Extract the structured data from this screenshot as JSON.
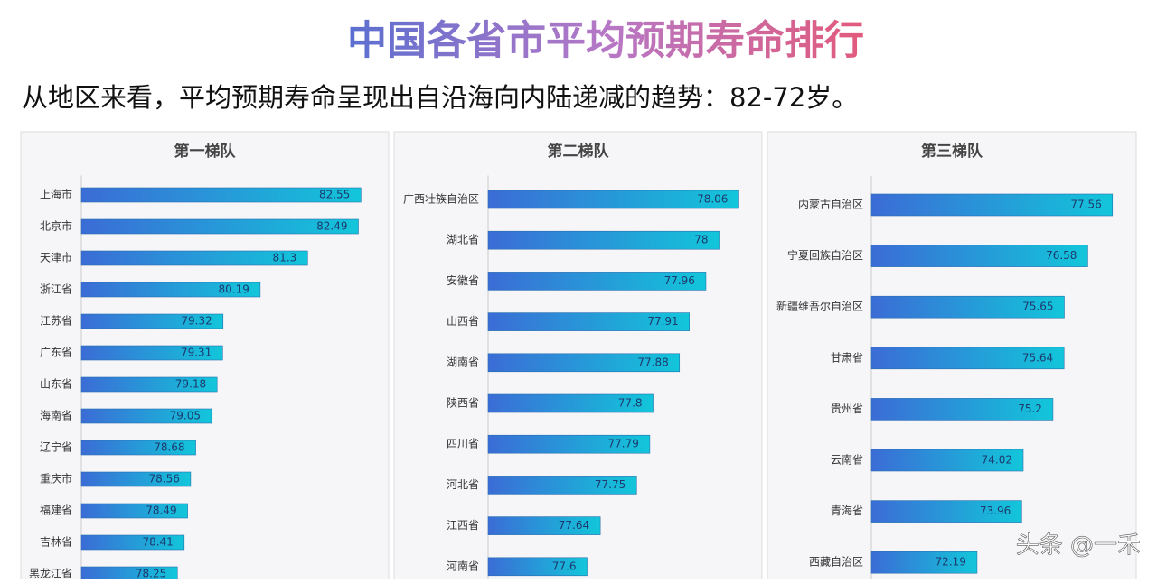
{
  "title": "中国各省市平均预期寿命排行",
  "subtitle": "从地区来看，平均预期寿命呈现出自沿海向内陆递减的趋势：82-72岁。",
  "watermark": "头条 @一禾",
  "chart_data": [
    {
      "type": "bar",
      "orientation": "horizontal",
      "title": "第一梯队",
      "categories": [
        "上海市",
        "北京市",
        "天津市",
        "浙江省",
        "江苏省",
        "广东省",
        "山东省",
        "海南省",
        "辽宁省",
        "重庆市",
        "福建省",
        "吉林省",
        "黑龙江省"
      ],
      "values": [
        82.55,
        82.49,
        81.3,
        80.19,
        79.32,
        79.31,
        79.18,
        79.05,
        78.68,
        78.56,
        78.49,
        78.41,
        78.25
      ],
      "xlim": [
        76,
        83.2
      ],
      "color": [
        "#3b6cd6",
        "#12c6da"
      ]
    },
    {
      "type": "bar",
      "orientation": "horizontal",
      "title": "第二梯队",
      "categories": [
        "广西壮族自治区",
        "湖北省",
        "安徽省",
        "山西省",
        "湖南省",
        "陕西省",
        "四川省",
        "河北省",
        "江西省",
        "河南省"
      ],
      "values": [
        78.06,
        78,
        77.96,
        77.91,
        77.88,
        77.8,
        77.79,
        77.75,
        77.64,
        77.6
      ],
      "xlim": [
        77.3,
        78.13
      ],
      "color": [
        "#3b6cd6",
        "#12c6da"
      ]
    },
    {
      "type": "bar",
      "orientation": "horizontal",
      "title": "第三梯队",
      "categories": [
        "内蒙古自治区",
        "宁夏回族自治区",
        "新疆维吾尔自治区",
        "甘肃省",
        "贵州省",
        "云南省",
        "青海省",
        "西藏自治区"
      ],
      "values": [
        77.56,
        76.58,
        75.65,
        75.64,
        75.2,
        74.02,
        73.96,
        72.19
      ],
      "xlim": [
        68,
        78.5
      ],
      "color": [
        "#3b6cd6",
        "#12c6da"
      ]
    }
  ]
}
